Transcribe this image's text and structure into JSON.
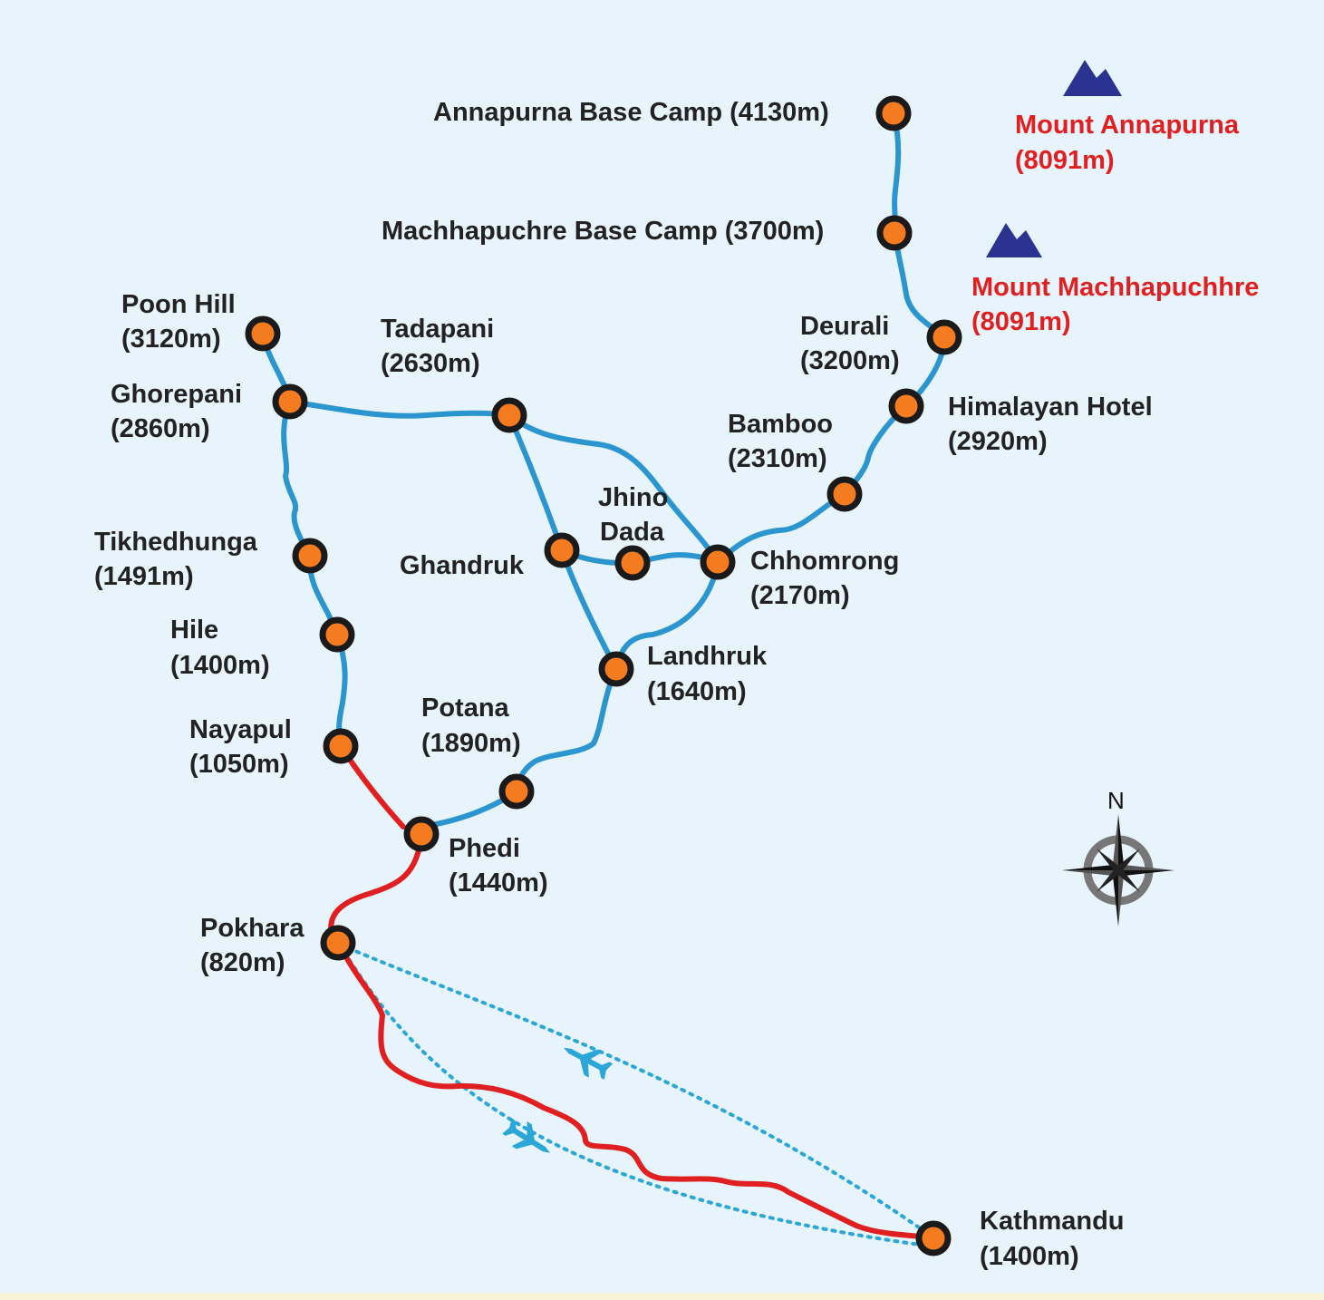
{
  "colors": {
    "background": "#e8f4fc",
    "trek_route": "#2b95cf",
    "road_route": "#e02020",
    "flight_route": "#2aa6d8",
    "node_fill": "#f47b20",
    "node_stroke": "#1a1a1a",
    "peak_icon": "#2a3390",
    "peak_label": "#e02020"
  },
  "places": [
    {
      "id": "abc",
      "name": "Annapurna Base Camp (4130m)"
    },
    {
      "id": "mbc",
      "name": "Machhapuchre Base Camp (3700m)"
    },
    {
      "id": "poonhill",
      "name": "Poon Hill",
      "alt": "(3120m)"
    },
    {
      "id": "tadapani",
      "name": "Tadapani",
      "alt": "(2630m)"
    },
    {
      "id": "deurali",
      "name": "Deurali",
      "alt": "(3200m)"
    },
    {
      "id": "ghorepani",
      "name": "Ghorepani",
      "alt": "(2860m)"
    },
    {
      "id": "himalayan",
      "name": "Himalayan Hotel",
      "alt": "(2920m)"
    },
    {
      "id": "bamboo",
      "name": "Bamboo",
      "alt": "(2310m)"
    },
    {
      "id": "jhinodada",
      "name": "Jhino",
      "alt": "Dada"
    },
    {
      "id": "tikhedhunga",
      "name": "Tikhedhunga",
      "alt": "(1491m)"
    },
    {
      "id": "ghandruk",
      "name": "Ghandruk"
    },
    {
      "id": "chhomrong",
      "name": "Chhomrong",
      "alt": "(2170m)"
    },
    {
      "id": "hile",
      "name": "Hile",
      "alt": "(1400m)"
    },
    {
      "id": "landhruk",
      "name": "Landhruk",
      "alt": "(1640m)"
    },
    {
      "id": "potana",
      "name": "Potana",
      "alt": "(1890m)"
    },
    {
      "id": "nayapul",
      "name": "Nayapul",
      "alt": "(1050m)"
    },
    {
      "id": "phedi",
      "name": "Phedi",
      "alt": "(1440m)"
    },
    {
      "id": "pokhara",
      "name": "Pokhara",
      "alt": "(820m)"
    },
    {
      "id": "kathmandu",
      "name": "Kathmandu",
      "alt": "(1400m)"
    }
  ],
  "peaks": [
    {
      "id": "annapurna",
      "name": "Mount Annapurna",
      "alt": "(8091m)"
    },
    {
      "id": "machhapuchhre",
      "name": "Mount Machhapuchhre",
      "alt": "(8091m)"
    }
  ],
  "compass": {
    "north_label": "N"
  }
}
